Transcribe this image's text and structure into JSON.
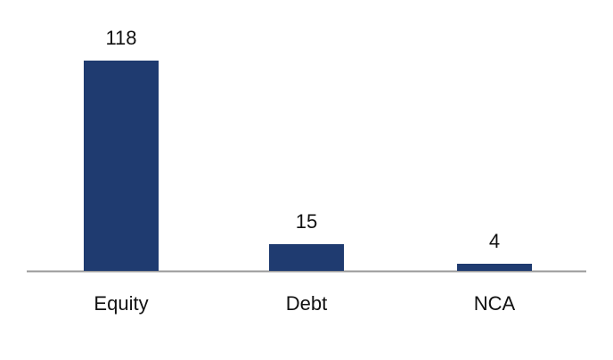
{
  "chart_data": {
    "type": "bar",
    "categories": [
      "Equity",
      "Debt",
      "NCA"
    ],
    "values": [
      118,
      15,
      4
    ],
    "color": "#1f3b70"
  }
}
